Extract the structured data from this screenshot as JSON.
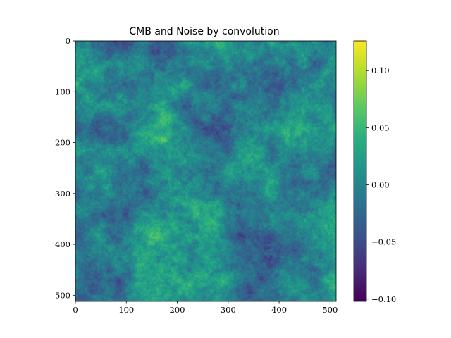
{
  "chart_data": {
    "type": "heatmap",
    "title": "CMB and Noise by convolution",
    "xlabel": "",
    "ylabel": "",
    "image_size": [
      512,
      512
    ],
    "x_range": [
      0,
      512
    ],
    "y_range": [
      512,
      0
    ],
    "x_ticks": [
      0,
      100,
      200,
      300,
      400,
      500
    ],
    "y_ticks": [
      0,
      100,
      200,
      300,
      400,
      500
    ],
    "x_tick_labels": [
      "0",
      "100",
      "200",
      "300",
      "400",
      "500"
    ],
    "y_tick_labels": [
      "0",
      "100",
      "200",
      "300",
      "400",
      "500"
    ],
    "colormap": "viridis",
    "colorbar": {
      "range": [
        -0.102,
        0.126
      ],
      "ticks": [
        0.1,
        0.05,
        0.0,
        -0.05,
        -0.1
      ],
      "tick_labels": [
        "0.10",
        "0.05",
        "0.00",
        "−0.05",
        "−0.10"
      ],
      "placement": "right"
    },
    "grid": false,
    "field_description": "random Gaussian-like fluctuation field"
  }
}
